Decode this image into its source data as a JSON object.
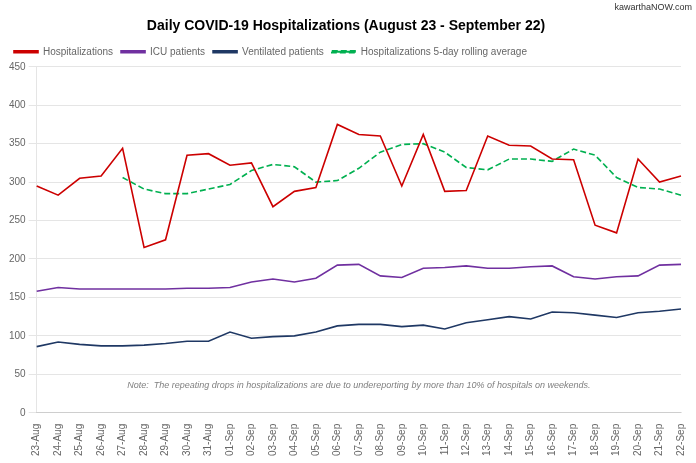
{
  "chart_data": {
    "type": "line",
    "title": "Daily COVID-19 Hospitalizations (August 23 - September 22)",
    "note": "Note:  The repeating drops in hospitalizations are due to undereporting by more than 10% of hospitals on weekends.",
    "watermark": "kawarthaNOW.com",
    "categories": [
      "23-Aug",
      "24-Aug",
      "25-Aug",
      "26-Aug",
      "27-Aug",
      "28-Aug",
      "29-Aug",
      "30-Aug",
      "31-Aug",
      "01-Sep",
      "02-Sep",
      "03-Sep",
      "04-Sep",
      "05-Sep",
      "06-Sep",
      "07-Sep",
      "08-Sep",
      "09-Sep",
      "10-Sep",
      "11-Sep",
      "12-Sep",
      "13-Sep",
      "14-Sep",
      "15-Sep",
      "16-Sep",
      "17-Sep",
      "18-Sep",
      "19-Sep",
      "20-Sep",
      "21-Sep",
      "22-Sep"
    ],
    "series": [
      {
        "name": "Hospitalizations",
        "color": "#cc0000",
        "line_style": "solid",
        "values": [
          295,
          283,
          305,
          308,
          344,
          215,
          225,
          335,
          337,
          322,
          325,
          268,
          288,
          293,
          375,
          362,
          360,
          295,
          362,
          288,
          289,
          360,
          348,
          347,
          330,
          329,
          244,
          234,
          330,
          300,
          308
        ]
      },
      {
        "name": "ICU patients",
        "color": "#7030a0",
        "line_style": "solid",
        "values": [
          158,
          163,
          161,
          161,
          161,
          161,
          161,
          162,
          162,
          163,
          170,
          174,
          170,
          175,
          192,
          193,
          178,
          176,
          188,
          189,
          191,
          188,
          188,
          190,
          191,
          177,
          174,
          177,
          178,
          192,
          193
        ]
      },
      {
        "name": "Ventilated patients",
        "color": "#1f3864",
        "line_style": "solid",
        "values": [
          86,
          92,
          89,
          87,
          87,
          88,
          90,
          93,
          93,
          105,
          97,
          99,
          100,
          105,
          113,
          115,
          115,
          112,
          114,
          109,
          117,
          121,
          125,
          122,
          131,
          130,
          127,
          124,
          130,
          132,
          135
        ]
      },
      {
        "name": "Hospitalizations 5-day rolling average",
        "color": "#00b050",
        "line_style": "dashed",
        "values": [
          null,
          null,
          null,
          null,
          306,
          291,
          285,
          285,
          291,
          297,
          315,
          323,
          320,
          300,
          302,
          318,
          339,
          349,
          350,
          339,
          319,
          316,
          330,
          330,
          327,
          343,
          335,
          306,
          293,
          291,
          283
        ]
      }
    ],
    "ylim": [
      0,
      450
    ],
    "yticks": [
      0,
      50,
      100,
      150,
      200,
      250,
      300,
      350,
      400,
      450
    ],
    "grid": true,
    "legend": "upper left"
  }
}
